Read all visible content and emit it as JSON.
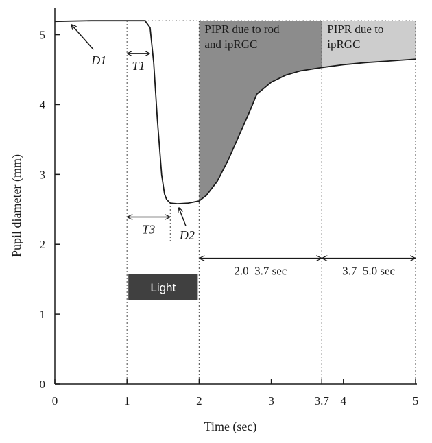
{
  "chart_data": {
    "type": "line",
    "xlabel": "Time (sec)",
    "ylabel": "Pupil diameter (mm)",
    "xlim": [
      0,
      5
    ],
    "ylim": [
      0,
      5.3
    ],
    "x_ticks": [
      {
        "value": 0,
        "label": "0"
      },
      {
        "value": 1,
        "label": "1"
      },
      {
        "value": 2,
        "label": "2"
      },
      {
        "value": 3,
        "label": "3"
      },
      {
        "value": 3.7,
        "label": "3.7"
      },
      {
        "value": 4,
        "label": "4"
      },
      {
        "value": 5,
        "label": "5"
      }
    ],
    "y_ticks": [
      {
        "value": 0,
        "label": "0"
      },
      {
        "value": 1,
        "label": "1"
      },
      {
        "value": 2,
        "label": "2"
      },
      {
        "value": 3,
        "label": "3"
      },
      {
        "value": 4,
        "label": "4"
      },
      {
        "value": 5,
        "label": "5"
      }
    ],
    "series": [
      {
        "name": "Pupil diameter",
        "x": [
          0,
          0.5,
          1.0,
          1.25,
          1.32,
          1.37,
          1.42,
          1.48,
          1.52,
          1.55,
          1.6,
          1.7,
          1.85,
          2.0,
          2.1,
          2.25,
          2.4,
          2.55,
          2.7,
          2.8,
          3.0,
          3.2,
          3.4,
          3.7,
          4.0,
          4.3,
          4.6,
          5.0
        ],
        "y": [
          5.19,
          5.2,
          5.2,
          5.2,
          5.1,
          4.6,
          3.8,
          3.0,
          2.72,
          2.64,
          2.59,
          2.58,
          2.59,
          2.62,
          2.7,
          2.9,
          3.2,
          3.55,
          3.9,
          4.15,
          4.32,
          4.42,
          4.48,
          4.53,
          4.57,
          4.6,
          4.62,
          4.65
        ]
      }
    ],
    "baseline_y": 5.2,
    "light": {
      "start": 1.0,
      "end": 2.0,
      "label": "Light"
    },
    "regions": [
      {
        "start": 2.0,
        "end": 3.7,
        "label_lines": [
          "PIPR due to rod",
          "and ipRGC"
        ],
        "color": "#8c8c8c"
      },
      {
        "start": 3.7,
        "end": 5.0,
        "label_lines": [
          "PIPR due to",
          "ipRGC"
        ],
        "color": "#cdcdcd"
      }
    ],
    "intervals": [
      {
        "start": 2.0,
        "end": 3.7,
        "y": 1.8,
        "label": "2.0–3.7 sec"
      },
      {
        "start": 3.7,
        "end": 5.0,
        "y": 1.8,
        "label": "3.7–5.0 sec"
      },
      {
        "start": 1.0,
        "end": 1.32,
        "y": 4.73,
        "label": "T1"
      },
      {
        "start": 1.0,
        "end": 1.6,
        "y": 2.39,
        "label": "T3"
      }
    ],
    "annotations": [
      {
        "label": "D1",
        "x": 0.25,
        "y": 5.18
      },
      {
        "label": "D2",
        "x": 1.7,
        "y": 2.58
      }
    ],
    "vlines": [
      1.0,
      1.6,
      2.0,
      3.7,
      5.0
    ]
  }
}
